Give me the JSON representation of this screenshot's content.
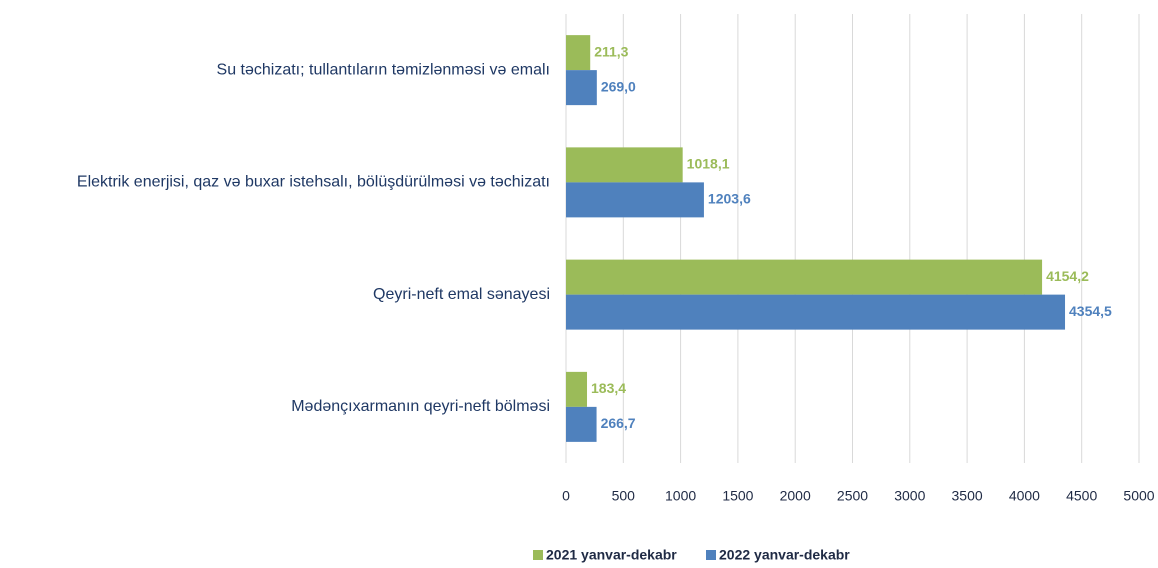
{
  "chart_data": {
    "type": "hbar",
    "categories": [
      "Su təchizatı; tullantıların təmizlənməsi və emalı",
      "Elektrik enerjisi, qaz və buxar istehsalı, bölüşdürülməsi və təchizatı",
      "Qeyri-neft emal sənayesi",
      "Mədənçıxarmanın qeyri-neft bölməsi"
    ],
    "series": [
      {
        "name": "2021 yanvar-dekabr",
        "color": "#9bbb59",
        "values": [
          211.3,
          1018.1,
          4154.2,
          183.4
        ],
        "value_labels": [
          "211,3",
          "1018,1",
          "4154,2",
          "183,4"
        ]
      },
      {
        "name": "2022 yanvar-dekabr",
        "color": "#4f81bd",
        "values": [
          269.0,
          1203.6,
          4354.5,
          266.7
        ],
        "value_labels": [
          "269,0",
          "1203,6",
          "4354,5",
          "266,7"
        ]
      }
    ],
    "xlim": [
      0,
      5000
    ],
    "xticks": [
      0,
      500,
      1000,
      1500,
      2000,
      2500,
      3000,
      3500,
      4000,
      4500,
      5000
    ],
    "grid": true,
    "legend": "bottom"
  }
}
